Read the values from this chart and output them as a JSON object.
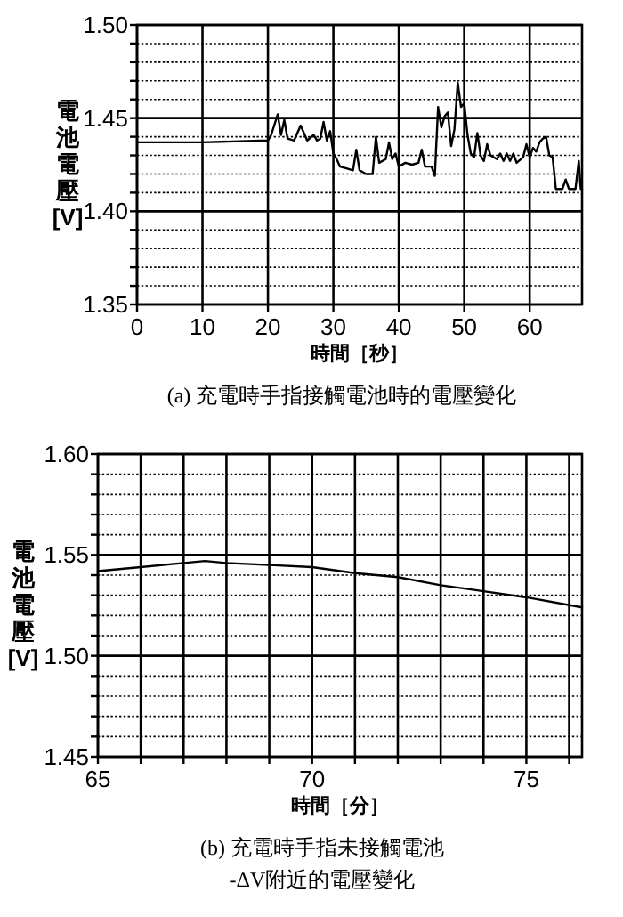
{
  "chart_data": [
    {
      "type": "line",
      "xlabel": "時間［秒］",
      "ylabel": "電池電壓 [V]",
      "annotations": [
        "(a) 充電時手指接觸電池時的電壓變化"
      ],
      "grid": true,
      "xlim": [
        0,
        68
      ],
      "ylim": [
        1.35,
        1.5
      ],
      "xticks": [
        0,
        10,
        20,
        30,
        40,
        50,
        60
      ],
      "yticks": [
        1.35,
        {
          "value": 1.36,
          "label": null
        },
        {
          "value": 1.37,
          "label": null
        },
        {
          "value": 1.38,
          "label": null
        },
        {
          "value": 1.39,
          "label": null
        },
        {
          "value": 1.4,
          "label": "1.40"
        },
        {
          "value": 1.41,
          "label": null
        },
        {
          "value": 1.42,
          "label": null
        },
        {
          "value": 1.43,
          "label": null
        },
        {
          "value": 1.44,
          "label": null
        },
        1.45,
        {
          "value": 1.46,
          "label": null
        },
        {
          "value": 1.47,
          "label": null
        },
        {
          "value": 1.48,
          "label": null
        },
        {
          "value": 1.49,
          "label": null
        },
        {
          "value": 1.5,
          "label": "1.50"
        }
      ],
      "series": [
        {
          "color": "#000000",
          "x": [
            0,
            10,
            20,
            20.5,
            21.5,
            22,
            22.5,
            23,
            24,
            25,
            26,
            27,
            27.5,
            28,
            28.5,
            29,
            29.5,
            30,
            30.5,
            31,
            32,
            33,
            33.5,
            34,
            35,
            36,
            36.5,
            37,
            38,
            38.5,
            39,
            39.5,
            40,
            41,
            42,
            43,
            43.5,
            44,
            45,
            45.5,
            46,
            46.5,
            47,
            47.5,
            48,
            48.5,
            49,
            49.5,
            50,
            50.5,
            51,
            51.5,
            52,
            52.5,
            53,
            53.5,
            54,
            55,
            55.5,
            56,
            56.5,
            57,
            57.5,
            58,
            59,
            59.5,
            60,
            60.5,
            61,
            61.5,
            62,
            62.5,
            63,
            63.5,
            64,
            65,
            65.5,
            66,
            67,
            67.5,
            67.8,
            68
          ],
          "values": [
            1.437,
            1.437,
            1.438,
            1.441,
            1.452,
            1.441,
            1.449,
            1.439,
            1.438,
            1.446,
            1.438,
            1.441,
            1.438,
            1.439,
            1.448,
            1.438,
            1.443,
            1.431,
            1.428,
            1.424,
            1.423,
            1.422,
            1.433,
            1.422,
            1.42,
            1.42,
            1.44,
            1.426,
            1.428,
            1.437,
            1.428,
            1.431,
            1.424,
            1.426,
            1.425,
            1.426,
            1.433,
            1.424,
            1.424,
            1.419,
            1.456,
            1.445,
            1.451,
            1.453,
            1.435,
            1.444,
            1.469,
            1.456,
            1.458,
            1.441,
            1.431,
            1.429,
            1.442,
            1.43,
            1.427,
            1.436,
            1.43,
            1.428,
            1.431,
            1.427,
            1.431,
            1.427,
            1.431,
            1.426,
            1.429,
            1.436,
            1.429,
            1.434,
            1.432,
            1.437,
            1.439,
            1.44,
            1.43,
            1.429,
            1.412,
            1.412,
            1.417,
            1.412,
            1.412,
            1.427,
            1.412,
            1.412
          ]
        }
      ]
    },
    {
      "type": "line",
      "xlabel": "時間［分］",
      "ylabel": "電池電壓 [V]",
      "annotations": [
        "(b) 充電時手指未接觸電池",
        "-ΔV附近的電壓變化"
      ],
      "grid": true,
      "xlim": [
        65,
        76.3
      ],
      "ylim": [
        1.45,
        1.6
      ],
      "xticks": [
        65,
        {
          "value": 66,
          "label": null
        },
        {
          "value": 67,
          "label": null
        },
        {
          "value": 68,
          "label": null
        },
        {
          "value": 69,
          "label": null
        },
        70,
        {
          "value": 71,
          "label": null
        },
        {
          "value": 72,
          "label": null
        },
        {
          "value": 73,
          "label": null
        },
        {
          "value": 74,
          "label": null
        },
        75,
        {
          "value": 76,
          "label": null
        }
      ],
      "yticks": [
        1.45,
        {
          "value": 1.46,
          "label": null
        },
        {
          "value": 1.47,
          "label": null
        },
        {
          "value": 1.48,
          "label": null
        },
        {
          "value": 1.49,
          "label": null
        },
        {
          "value": 1.5,
          "label": "1.50"
        },
        {
          "value": 1.51,
          "label": null
        },
        {
          "value": 1.52,
          "label": null
        },
        {
          "value": 1.53,
          "label": null
        },
        {
          "value": 1.54,
          "label": null
        },
        1.55,
        {
          "value": 1.56,
          "label": null
        },
        {
          "value": 1.57,
          "label": null
        },
        {
          "value": 1.58,
          "label": null
        },
        {
          "value": 1.59,
          "label": null
        },
        {
          "value": 1.6,
          "label": "1.60"
        }
      ],
      "series": [
        {
          "color": "#000000",
          "x": [
            65,
            66,
            67,
            67.5,
            68,
            69,
            70,
            71,
            72,
            73,
            74,
            75,
            76.3
          ],
          "values": [
            1.542,
            1.544,
            1.546,
            1.547,
            1.546,
            1.545,
            1.544,
            1.541,
            1.539,
            1.535,
            1.532,
            1.529,
            1.524
          ]
        }
      ]
    }
  ]
}
